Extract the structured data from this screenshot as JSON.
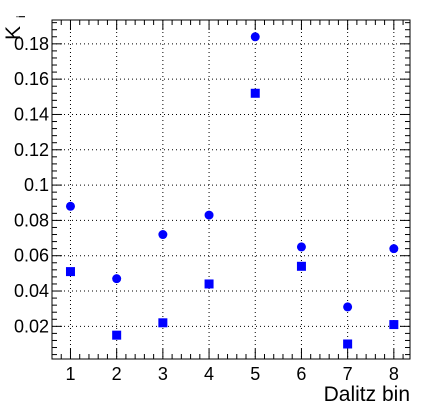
{
  "chart_data": {
    "type": "scatter",
    "title": "",
    "xlabel": "Dalitz bin",
    "ylabel": "K",
    "ylabel_subscript": "i",
    "xlim": [
      0.6,
      8.35
    ],
    "ylim": [
      0.0015,
      0.1935
    ],
    "grid": true,
    "x_ticks": [
      1,
      2,
      3,
      4,
      5,
      6,
      7,
      8
    ],
    "x_tick_labels": [
      "1",
      "2",
      "3",
      "4",
      "5",
      "6",
      "7",
      "8"
    ],
    "y_ticks": [
      0.02,
      0.04,
      0.06,
      0.08,
      0.1,
      0.12,
      0.14,
      0.16,
      0.18
    ],
    "y_tick_labels": [
      "0.02",
      "0.04",
      "0.06",
      "0.08",
      "0.1",
      "0.12",
      "0.14",
      "0.16",
      "0.18"
    ],
    "series": [
      {
        "name": "circles",
        "marker": "circle",
        "color": "#0000ff",
        "x": [
          1,
          2,
          3,
          4,
          5,
          6,
          7,
          8
        ],
        "values": [
          0.088,
          0.047,
          0.072,
          0.083,
          0.184,
          0.065,
          0.031,
          0.064
        ]
      },
      {
        "name": "squares",
        "marker": "square",
        "color": "#0000ff",
        "x": [
          1,
          2,
          3,
          4,
          5,
          6,
          7,
          8
        ],
        "values": [
          0.051,
          0.015,
          0.022,
          0.044,
          0.152,
          0.054,
          0.01,
          0.021
        ]
      }
    ]
  }
}
